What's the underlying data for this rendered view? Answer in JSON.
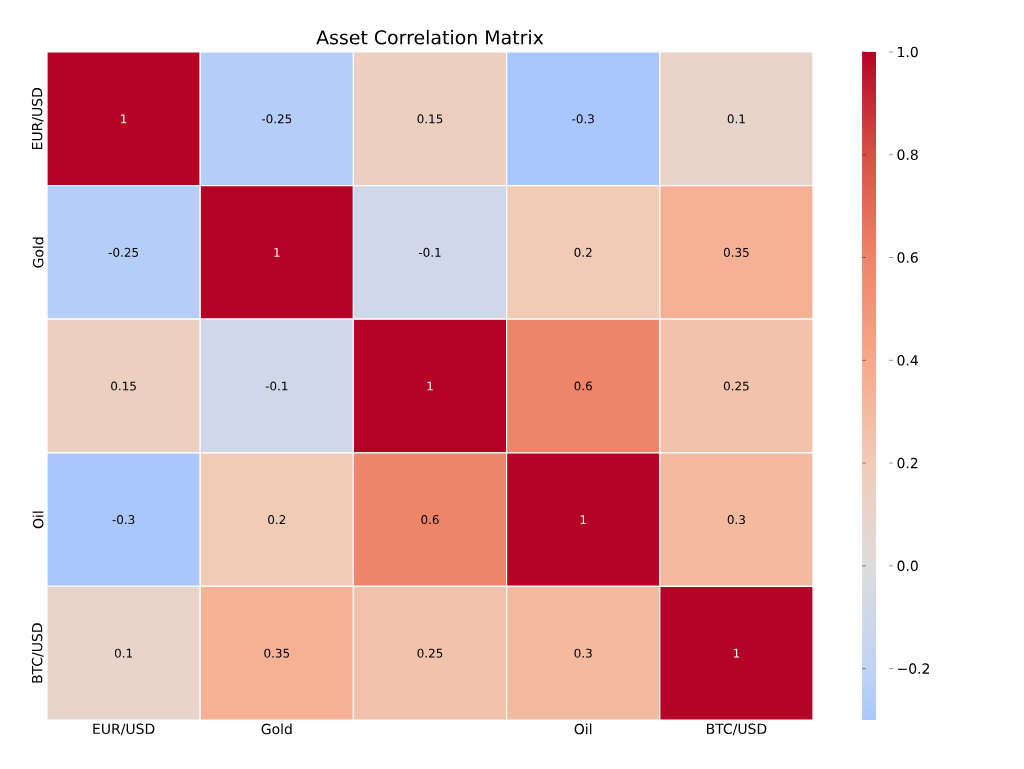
{
  "chart_data": {
    "type": "heatmap",
    "title": "Asset Correlation Matrix",
    "categories": [
      "EUR/USD",
      "Gold",
      null,
      "Oil",
      "BTC/USD"
    ],
    "y_categories": [
      "EUR/USD",
      "Gold",
      null,
      "Oil",
      "BTC/USD"
    ],
    "cells": [
      [
        1,
        -0.25,
        0.15,
        -0.3,
        0.1
      ],
      [
        -0.25,
        1,
        -0.1,
        0.2,
        0.35
      ],
      [
        0.15,
        -0.1,
        1,
        0.6,
        0.25
      ],
      [
        -0.3,
        0.2,
        0.6,
        1,
        0.3
      ],
      [
        0.1,
        0.35,
        0.25,
        0.3,
        1
      ]
    ],
    "data_labels": true,
    "clim": [
      -0.3,
      1.0
    ],
    "cticks": [
      {
        "value": -0.2,
        "label": "−0.2"
      },
      {
        "value": 0,
        "label": "0.0"
      },
      0.2,
      0.4,
      0.6,
      0.8,
      {
        "value": 1,
        "label": "1.0"
      }
    ]
  }
}
